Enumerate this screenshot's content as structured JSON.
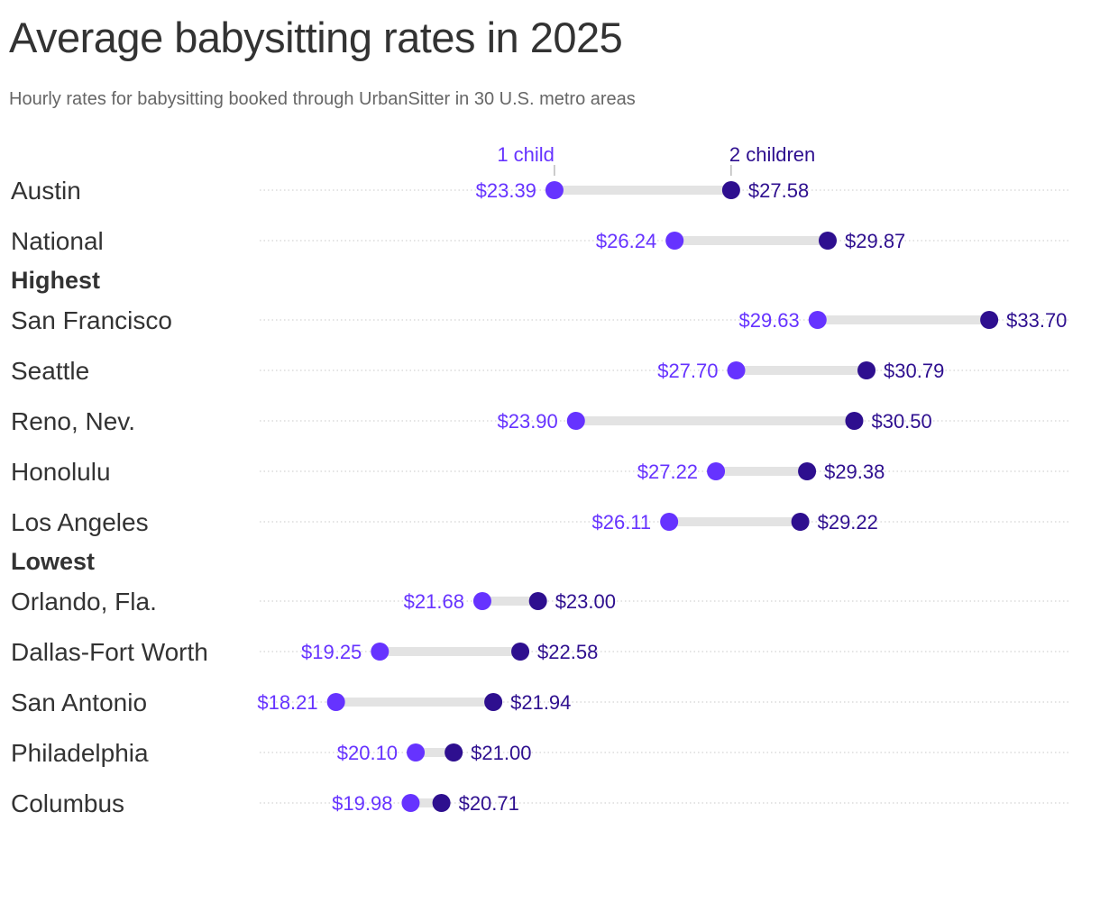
{
  "title": "Average babysitting rates in 2025",
  "subtitle": "Hourly rates for babysitting booked through UrbanSitter in 30 U.S. metro areas",
  "chart_data": {
    "type": "dumbbell",
    "title": "Average babysitting rates in 2025",
    "subtitle": "Hourly rates for babysitting booked through UrbanSitter in 30 U.S. metro areas",
    "xlim": [
      16.4,
      35.6
    ],
    "grid": "dotted row lines",
    "series": [
      {
        "name": "1 child",
        "color": "#6633ff"
      },
      {
        "name": "2 children",
        "color": "#2e0f8f"
      }
    ],
    "groups": [
      {
        "label": "",
        "rows": [
          {
            "label": "Austin",
            "one_child": 23.39,
            "two_children": 27.58,
            "one_text": "$23.39",
            "two_text": "$27.58"
          },
          {
            "label": "National",
            "one_child": 26.24,
            "two_children": 29.87,
            "one_text": "$26.24",
            "two_text": "$29.87"
          }
        ]
      },
      {
        "label": "Highest",
        "rows": [
          {
            "label": "San Francisco",
            "one_child": 29.63,
            "two_children": 33.7,
            "one_text": "$29.63",
            "two_text": "$33.70"
          },
          {
            "label": "Seattle",
            "one_child": 27.7,
            "two_children": 30.79,
            "one_text": "$27.70",
            "two_text": "$30.79"
          },
          {
            "label": "Reno, Nev.",
            "one_child": 23.9,
            "two_children": 30.5,
            "one_text": "$23.90",
            "two_text": "$30.50"
          },
          {
            "label": "Honolulu",
            "one_child": 27.22,
            "two_children": 29.38,
            "one_text": "$27.22",
            "two_text": "$29.38"
          },
          {
            "label": "Los Angeles",
            "one_child": 26.11,
            "two_children": 29.22,
            "one_text": "$26.11",
            "two_text": "$29.22"
          }
        ]
      },
      {
        "label": "Lowest",
        "rows": [
          {
            "label": "Orlando, Fla.",
            "one_child": 21.68,
            "two_children": 23.0,
            "one_text": "$21.68",
            "two_text": "$23.00"
          },
          {
            "label": "Dallas-Fort Worth",
            "one_child": 19.25,
            "two_children": 22.58,
            "one_text": "$19.25",
            "two_text": "$22.58"
          },
          {
            "label": "San Antonio",
            "one_child": 18.21,
            "two_children": 21.94,
            "one_text": "$18.21",
            "two_text": "$21.94"
          },
          {
            "label": "Philadelphia",
            "one_child": 20.1,
            "two_children": 21.0,
            "one_text": "$20.10",
            "two_text": "$21.00"
          },
          {
            "label": "Columbus",
            "one_child": 19.98,
            "two_children": 20.71,
            "one_text": "$19.98",
            "two_text": "$20.71"
          }
        ]
      }
    ]
  }
}
